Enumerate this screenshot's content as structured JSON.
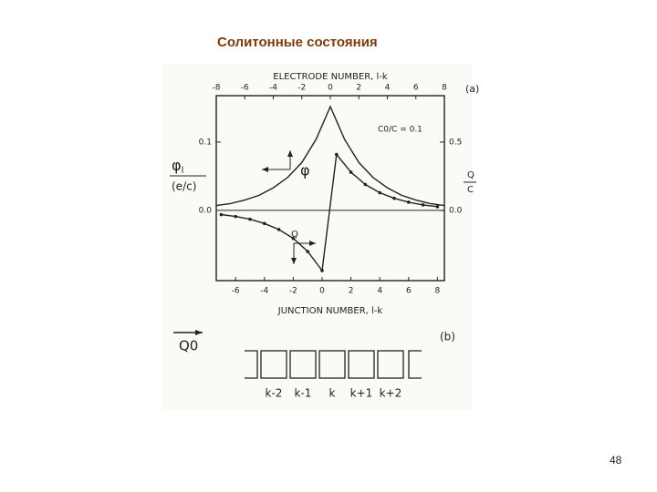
{
  "title": "Солитонные состояния",
  "page_number": "48",
  "figure": {
    "top_axis_label": "ELECTRODE NUMBER, l-k",
    "panel_a": "(a)",
    "panel_b": "(b)",
    "ratio_label": "C0/C = 0.1",
    "y_label": {
      "symbol": "φ",
      "sub": "l",
      "denominator": "(e/c)"
    },
    "y2_label": {
      "numerator": "Q",
      "denominator": "C"
    },
    "bottom_axis_label": "JUNCTION NUMBER, l-k",
    "phi_label": "φ",
    "q_label": "Q",
    "charge_label": "Q0",
    "cells": [
      "k-2",
      "k-1",
      "k",
      "k+1",
      "k+2"
    ],
    "top_xlim": [
      -8,
      8
    ],
    "top_xticks": [
      -8,
      -6,
      -4,
      -2,
      0,
      2,
      4,
      6,
      8
    ],
    "bottom_xlim": [
      -7.34,
      8.48
    ],
    "bottom_xticks": [
      -6,
      -4,
      -2,
      0,
      2,
      4,
      6,
      8
    ],
    "ylim": [
      -0.103,
      0.168
    ],
    "yticks": [
      {
        "value": 0,
        "label": "0.0"
      },
      0.1
    ],
    "y2lim": [
      -0.513,
      0.84
    ],
    "y2ticks": [
      {
        "value": 0,
        "label": "0.0"
      },
      0.5
    ],
    "phi": {
      "x": [
        -8,
        -7,
        -6,
        -5,
        -4,
        -3,
        -2,
        -1,
        0,
        1,
        2,
        3,
        4,
        5,
        6,
        7,
        8
      ],
      "values": [
        0.007,
        0.01,
        0.015,
        0.022,
        0.033,
        0.048,
        0.07,
        0.104,
        0.152,
        0.104,
        0.07,
        0.048,
        0.033,
        0.022,
        0.015,
        0.01,
        0.007
      ]
    },
    "q": {
      "x": [
        -7,
        -6,
        -5,
        -4,
        -3,
        -2,
        -1,
        0,
        1,
        2,
        3,
        4,
        5,
        6,
        7,
        8
      ],
      "values": [
        -0.03,
        -0.044,
        -0.064,
        -0.095,
        -0.139,
        -0.204,
        -0.3,
        -0.44,
        0.41,
        0.28,
        0.19,
        0.13,
        0.089,
        0.061,
        0.041,
        0.028
      ]
    }
  }
}
